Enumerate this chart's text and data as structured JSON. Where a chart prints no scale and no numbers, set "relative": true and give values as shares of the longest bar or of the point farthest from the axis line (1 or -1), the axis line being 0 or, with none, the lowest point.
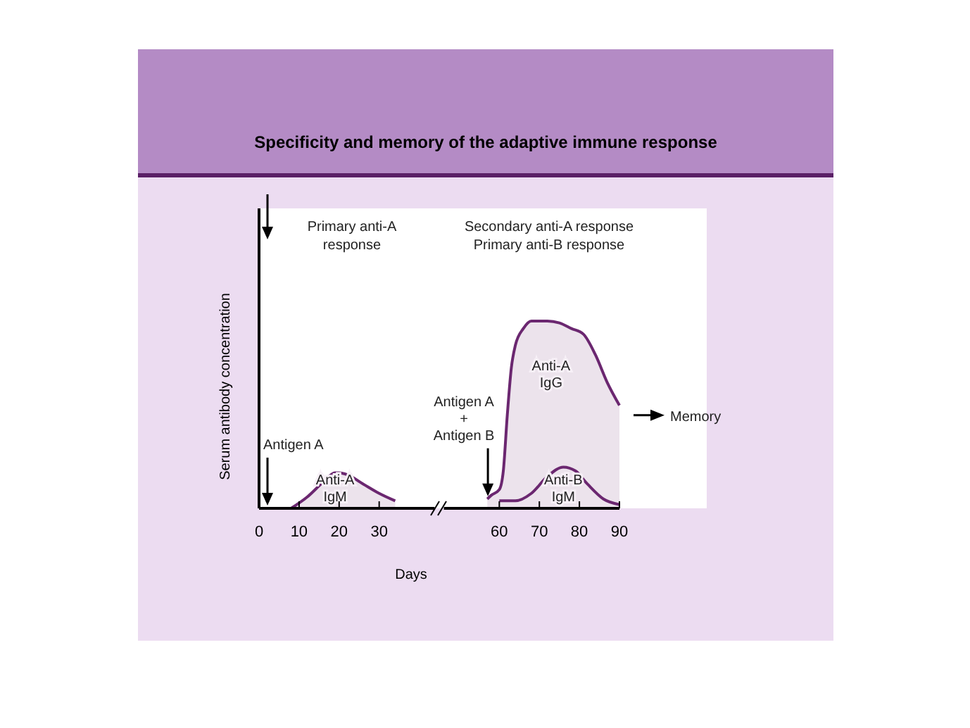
{
  "chart_data": {
    "type": "area",
    "title": "Specificity and memory of the adaptive immune response",
    "xlabel": "Days",
    "ylabel": "Serum antibody concentration",
    "relative": true,
    "xlim": [
      0,
      90
    ],
    "xticks": [
      0,
      10,
      20,
      30,
      60,
      70,
      80,
      90
    ],
    "series": [
      {
        "name": "Anti-A IgM",
        "color": "#6b2770",
        "x": [
          8,
          12,
          16,
          19,
          20,
          22,
          26,
          30,
          34
        ],
        "values": [
          0,
          0.06,
          0.14,
          0.19,
          0.19,
          0.18,
          0.13,
          0.08,
          0.04
        ]
      },
      {
        "name": "Anti-A IgG",
        "color": "#6b2770",
        "x": [
          57,
          58,
          60,
          61,
          62,
          63,
          64,
          66,
          68,
          72,
          75,
          78,
          81,
          84,
          87,
          90
        ],
        "values": [
          0.05,
          0.07,
          0.1,
          0.2,
          0.5,
          0.75,
          0.87,
          0.96,
          1,
          1,
          0.99,
          0.96,
          0.93,
          0.82,
          0.67,
          0.55
        ]
      },
      {
        "name": "Anti-B IgM",
        "type": "line",
        "color": "#6b2770",
        "x": [
          60,
          64,
          68,
          72,
          76,
          79,
          82,
          86,
          90
        ],
        "values": [
          0.04,
          0.04,
          0.08,
          0.17,
          0.22,
          0.2,
          0.13,
          0.05,
          0.02
        ]
      }
    ],
    "annotations": [
      "Primary anti-A\nresponse",
      "Secondary anti-A response\nPrimary anti-B response",
      "Antigen A",
      "Antigen A\n+\nAntigen B",
      "Memory"
    ]
  }
}
